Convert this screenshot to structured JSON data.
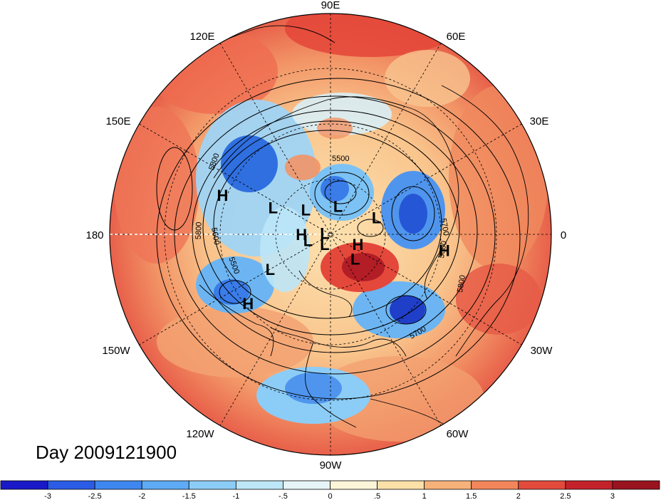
{
  "map": {
    "projection": "north-polar-stereographic",
    "longitude_labels": [
      "90E",
      "120E",
      "60E",
      "150E",
      "30E",
      "180",
      "0",
      "150W",
      "30W",
      "120W",
      "60W",
      "90W"
    ],
    "pressure_systems": [
      {
        "type": "L",
        "lon": 155,
        "lat": 58
      },
      {
        "type": "H",
        "lon": 160,
        "lat": 35
      },
      {
        "type": "L",
        "lon": 135,
        "lat": 72
      },
      {
        "type": "H",
        "lon": 180,
        "lat": 75
      },
      {
        "type": "L",
        "lon": 75,
        "lat": 75
      },
      {
        "type": "L",
        "lon": 20,
        "lat": 65
      },
      {
        "type": "L",
        "lon": 170,
        "lat": 87
      },
      {
        "type": "L",
        "lon": -165,
        "lat": 78
      },
      {
        "type": "L",
        "lon": -120,
        "lat": 84
      },
      {
        "type": "H",
        "lon": -20,
        "lat": 75
      },
      {
        "type": "L",
        "lon": -45,
        "lat": 72
      },
      {
        "type": "L",
        "lon": -150,
        "lat": 55
      },
      {
        "type": "H",
        "lon": -140,
        "lat": 38
      },
      {
        "type": "H",
        "lon": -8,
        "lat": 35
      }
    ],
    "contour_labels": [
      "5500",
      "5800",
      "5600",
      "5500",
      "5800",
      "5700",
      "5600",
      "5800",
      "5700"
    ]
  },
  "caption": "Day 2009121900",
  "colorbar": {
    "tick_labels": [
      "-3",
      "-2.5",
      "-2",
      "-1.5",
      "-1",
      "-.5",
      "0",
      ".5",
      "1",
      "1.5",
      "2",
      "2.5",
      "3"
    ],
    "colors": [
      "#1919c8",
      "#2a5ce6",
      "#3f87f0",
      "#5eaaf5",
      "#8ccdf7",
      "#bde6f7",
      "#e6f4f7",
      "#fdf5d7",
      "#fbe0a8",
      "#f7b27a",
      "#f2865a",
      "#e24a3c",
      "#c4222b",
      "#9a1420"
    ]
  }
}
